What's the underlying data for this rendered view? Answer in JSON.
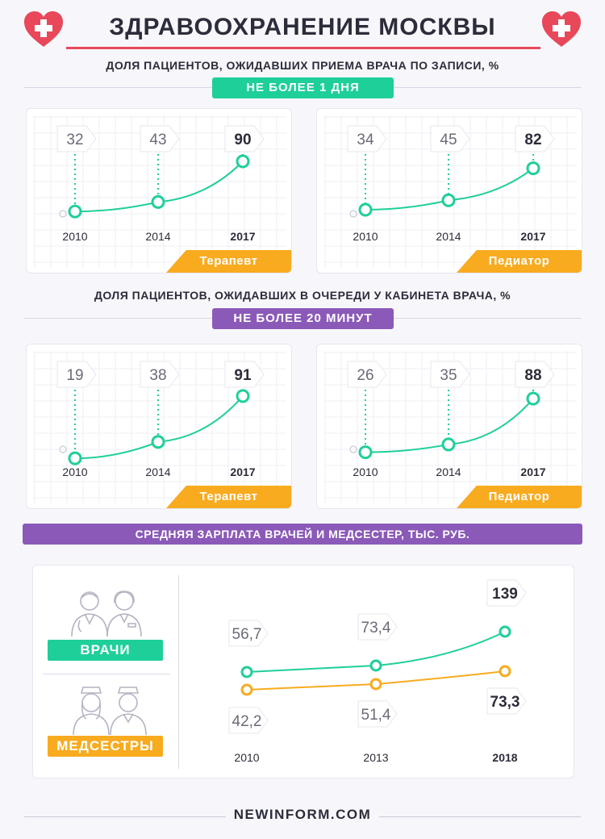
{
  "header": {
    "title": "ЗДРАВООХРАНЕНИЕ МОСКВЫ",
    "accent": "#e8485a"
  },
  "section1": {
    "subtitle": "ДОЛЯ ПАЦИЕНТОВ, ОЖИДАВШИХ ПРИЕМА ВРАЧА ПО ЗАПИСИ, %",
    "pill": "НЕ БОЛЕЕ 1 ДНЯ"
  },
  "section2": {
    "subtitle": "ДОЛЯ ПАЦИЕНТОВ, ОЖИДАВШИХ В ОЧЕРЕДИ У КАБИНЕТА ВРАЧА, %",
    "pill": "НЕ БОЛЕЕ 20 МИНУТ"
  },
  "section3": {
    "banner": "СРЕДНЯЯ ЗАРПЛАТА ВРАЧЕЙ И МЕДСЕСТЕР, ТЫС. РУБ.",
    "doctors_label": "ВРАЧИ",
    "nurses_label": "МЕДСЕСТРЫ"
  },
  "colors": {
    "green": "#1ecf9a",
    "orange": "#f8ab1f",
    "purple": "#8b5ab8",
    "dark": "#2c2c3a"
  },
  "chart_data": [
    {
      "type": "line",
      "title": "Терапевт",
      "group": "ДОЛЯ ПАЦИЕНТОВ, ОЖИДАВШИХ ПРИЕМА ВРАЧА ПО ЗАПИСИ, % — НЕ БОЛЕЕ 1 ДНЯ",
      "categories": [
        "2010",
        "2014",
        "2017"
      ],
      "values": [
        32,
        43,
        90
      ],
      "labels": [
        "32",
        "43",
        "90"
      ]
    },
    {
      "type": "line",
      "title": "Педиатор",
      "group": "ДОЛЯ ПАЦИЕНТОВ, ОЖИДАВШИХ ПРИЕМА ВРАЧА ПО ЗАПИСИ, % — НЕ БОЛЕЕ 1 ДНЯ",
      "categories": [
        "2010",
        "2014",
        "2017"
      ],
      "values": [
        34,
        45,
        82
      ],
      "labels": [
        "34",
        "45",
        "82"
      ]
    },
    {
      "type": "line",
      "title": "Терапевт",
      "group": "ДОЛЯ ПАЦИЕНТОВ, ОЖИДАВШИХ В ОЧЕРЕДИ У КАБИНЕТА ВРАЧА, % — НЕ БОЛЕЕ 20 МИНУТ",
      "categories": [
        "2010",
        "2014",
        "2017"
      ],
      "values": [
        19,
        38,
        91
      ],
      "labels": [
        "19",
        "38",
        "91"
      ]
    },
    {
      "type": "line",
      "title": "Педиатор",
      "group": "ДОЛЯ ПАЦИЕНТОВ, ОЖИДАВШИХ В ОЧЕРЕДИ У КАБИНЕТА ВРАЧА, % — НЕ БОЛЕЕ 20 МИНУТ",
      "categories": [
        "2010",
        "2014",
        "2017"
      ],
      "values": [
        26,
        35,
        88
      ],
      "labels": [
        "26",
        "35",
        "88"
      ]
    },
    {
      "type": "line",
      "title": "СРЕДНЯЯ ЗАРПЛАТА ВРАЧЕЙ И МЕДСЕСТЕР, ТЫС. РУБ.",
      "categories": [
        "2010",
        "2013",
        "2018"
      ],
      "series": [
        {
          "name": "ВРАЧИ",
          "values": [
            56.7,
            73.4,
            139
          ],
          "labels": [
            "56,7",
            "73,4",
            "139"
          ],
          "color": "#1ecf9a"
        },
        {
          "name": "МЕДСЕСТРЫ",
          "values": [
            42.2,
            51.4,
            73.3
          ],
          "labels": [
            "42,2",
            "51,4",
            "73,3"
          ],
          "color": "#f8ab1f"
        }
      ]
    }
  ],
  "footer": {
    "site": "NEWINFORM.COM"
  }
}
